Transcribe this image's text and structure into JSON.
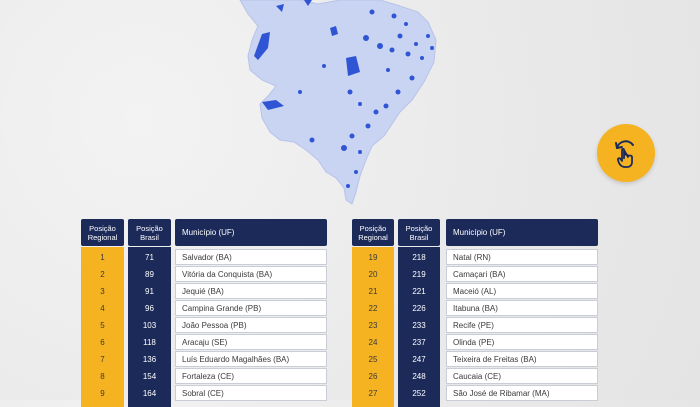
{
  "header": {
    "regional_position": "Posição Regional",
    "brazil_position": "Posição Brasil",
    "municipality": "Município (UF)"
  },
  "left_table": [
    {
      "regional": "1",
      "brasil": "71",
      "name": "Salvador (BA)"
    },
    {
      "regional": "2",
      "brasil": "89",
      "name": "Vitória da Conquista (BA)"
    },
    {
      "regional": "3",
      "brasil": "91",
      "name": "Jequié (BA)"
    },
    {
      "regional": "4",
      "brasil": "96",
      "name": "Campina Grande (PB)"
    },
    {
      "regional": "5",
      "brasil": "103",
      "name": "João Pessoa (PB)"
    },
    {
      "regional": "6",
      "brasil": "118",
      "name": "Aracaju (SE)"
    },
    {
      "regional": "7",
      "brasil": "136",
      "name": "Luís Eduardo Magalhães (BA)"
    },
    {
      "regional": "8",
      "brasil": "154",
      "name": "Fortaleza (CE)"
    },
    {
      "regional": "9",
      "brasil": "164",
      "name": "Sobral (CE)"
    }
  ],
  "right_table": [
    {
      "regional": "19",
      "brasil": "218",
      "name": "Natal (RN)"
    },
    {
      "regional": "20",
      "brasil": "219",
      "name": "Camaçari (BA)"
    },
    {
      "regional": "21",
      "brasil": "221",
      "name": "Maceió (AL)"
    },
    {
      "regional": "22",
      "brasil": "226",
      "name": "Itabuna (BA)"
    },
    {
      "regional": "23",
      "brasil": "233",
      "name": "Recife (PE)"
    },
    {
      "regional": "24",
      "brasil": "237",
      "name": "Olinda (PE)"
    },
    {
      "regional": "25",
      "brasil": "247",
      "name": "Teixeira de Freitas (BA)"
    },
    {
      "regional": "26",
      "brasil": "248",
      "name": "Caucaia (CE)"
    },
    {
      "regional": "27",
      "brasil": "252",
      "name": "São José de Ribamar (MA)"
    }
  ],
  "swipe_button": {
    "icon": "swipe-hand-icon"
  },
  "colors": {
    "navy": "#1c2a5a",
    "gold": "#f5b321",
    "map_fill": "#c9d3f2",
    "map_highlight": "#2f55d4",
    "background": "#ededed"
  }
}
